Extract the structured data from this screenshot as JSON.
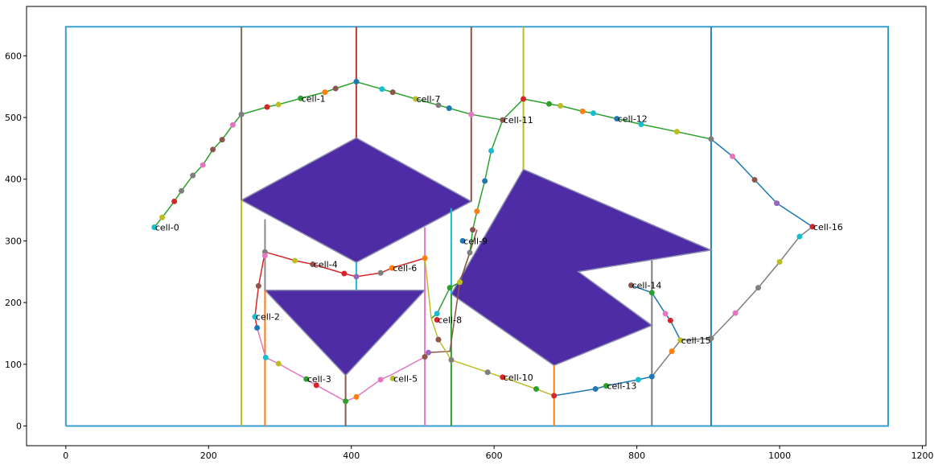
{
  "chart_data": {
    "type": "line",
    "title": "",
    "xlabel": "",
    "ylabel": "",
    "xlim": [
      -55,
      1205
    ],
    "ylim": [
      -32,
      680
    ],
    "xticks": [
      0,
      200,
      400,
      600,
      800,
      1000,
      1200
    ],
    "yticks": [
      0,
      100,
      200,
      300,
      400,
      500,
      600
    ],
    "grid": false,
    "boundary": {
      "rect": [
        [
          0,
          0
        ],
        [
          1152,
          0
        ],
        [
          1152,
          647
        ],
        [
          0,
          647
        ],
        [
          0,
          0
        ]
      ],
      "divider_x": 904,
      "color": "#3a9fcf",
      "divider_color": "#2a7fb0"
    },
    "obstacles": [
      {
        "color": "#4e2ca6",
        "points": [
          [
            246,
            366
          ],
          [
            407,
            467
          ],
          [
            568,
            364
          ],
          [
            407,
            265
          ]
        ]
      },
      {
        "color": "#4e2ca6",
        "points": [
          [
            279,
            220
          ],
          [
            503,
            220
          ],
          [
            392,
            82
          ]
        ]
      },
      {
        "color": "#4e2ca6",
        "points": [
          [
            540,
            214
          ],
          [
            641,
            416
          ],
          [
            904,
            285
          ],
          [
            718,
            250
          ],
          [
            821,
            163
          ],
          [
            684,
            98
          ]
        ]
      }
    ],
    "cell_walls": [
      {
        "color": "#7f6f52",
        "points": [
          [
            246,
            647
          ],
          [
            246,
            366
          ]
        ]
      },
      {
        "color": "#bdbd22",
        "points": [
          [
            246,
            366
          ],
          [
            246,
            0
          ]
        ]
      },
      {
        "color": "#8c8c8c",
        "points": [
          [
            279,
            220
          ],
          [
            279,
            335
          ]
        ]
      },
      {
        "color": "#ff7f0e",
        "points": [
          [
            279,
            220
          ],
          [
            279,
            0
          ]
        ]
      },
      {
        "color": "#c0392b",
        "points": [
          [
            407,
            647
          ],
          [
            407,
            467
          ]
        ]
      },
      {
        "color": "#17becf",
        "points": [
          [
            407,
            265
          ],
          [
            407,
            220
          ]
        ]
      },
      {
        "color": "#8c564b",
        "points": [
          [
            392,
            82
          ],
          [
            392,
            0
          ]
        ]
      },
      {
        "color": "#e377c2",
        "points": [
          [
            503,
            322
          ],
          [
            503,
            0
          ]
        ]
      },
      {
        "color": "#17becf",
        "points": [
          [
            540,
            214
          ],
          [
            540,
            353
          ]
        ]
      },
      {
        "color": "#2ca02c",
        "points": [
          [
            540,
            214
          ],
          [
            540,
            0
          ]
        ]
      },
      {
        "color": "#8c564b",
        "points": [
          [
            568,
            647
          ],
          [
            568,
            364
          ]
        ]
      },
      {
        "color": "#bcbd22",
        "points": [
          [
            641,
            647
          ],
          [
            641,
            416
          ]
        ]
      },
      {
        "color": "#ff7f0e",
        "points": [
          [
            684,
            98
          ],
          [
            684,
            0
          ]
        ]
      },
      {
        "color": "#7f7f7f",
        "points": [
          [
            821,
            268
          ],
          [
            821,
            0
          ]
        ]
      }
    ],
    "paths": [
      {
        "color": "#2ca02c",
        "points": [
          [
            124,
            322
          ],
          [
            135,
            338
          ],
          [
            152,
            364
          ],
          [
            162,
            381
          ],
          [
            178,
            406
          ],
          [
            192,
            423
          ],
          [
            206,
            448
          ],
          [
            219,
            464
          ],
          [
            234,
            488
          ],
          [
            246,
            505
          ],
          [
            282,
            517
          ],
          [
            298,
            521
          ],
          [
            329,
            531
          ],
          [
            363,
            541
          ],
          [
            378,
            547
          ],
          [
            407,
            558
          ],
          [
            443,
            546
          ],
          [
            458,
            541
          ],
          [
            490,
            530
          ],
          [
            522,
            520
          ],
          [
            537,
            515
          ],
          [
            568,
            505
          ],
          [
            612,
            496
          ],
          [
            641,
            530
          ],
          [
            677,
            522
          ],
          [
            693,
            519
          ],
          [
            724,
            510
          ],
          [
            739,
            507
          ],
          [
            772,
            498
          ],
          [
            806,
            489
          ],
          [
            856,
            477
          ],
          [
            904,
            465
          ]
        ]
      },
      {
        "color": "#2ca02c",
        "points": [
          [
            612,
            496
          ],
          [
            596,
            446
          ],
          [
            587,
            397
          ],
          [
            576,
            348
          ],
          [
            570,
            318
          ],
          [
            566,
            281
          ],
          [
            552,
            233
          ],
          [
            538,
            224
          ],
          [
            520,
            182
          ],
          [
            512,
            174
          ]
        ]
      },
      {
        "color": "#8c564b",
        "points": [
          [
            576,
            318
          ],
          [
            566,
            281
          ],
          [
            552,
            233
          ],
          [
            538,
            121
          ],
          [
            508,
            119
          ],
          [
            503,
            112
          ]
        ]
      },
      {
        "color": "#d62728",
        "points": [
          [
            279,
            282
          ],
          [
            321,
            268
          ],
          [
            346,
            262
          ],
          [
            390,
            247
          ],
          [
            407,
            242
          ],
          [
            441,
            248
          ],
          [
            457,
            256
          ],
          [
            503,
            272
          ]
        ]
      },
      {
        "color": "#d62728",
        "points": [
          [
            279,
            282
          ],
          [
            270,
            227
          ],
          [
            265,
            177
          ],
          [
            268,
            159
          ]
        ]
      },
      {
        "color": "#e377c2",
        "points": [
          [
            268,
            159
          ],
          [
            280,
            111
          ],
          [
            298,
            101
          ],
          [
            337,
            76
          ],
          [
            351,
            66
          ],
          [
            392,
            40
          ],
          [
            407,
            47
          ],
          [
            441,
            75
          ],
          [
            458,
            84
          ],
          [
            503,
            112
          ]
        ]
      },
      {
        "color": "#bcbd22",
        "points": [
          [
            503,
            272
          ],
          [
            512,
            174
          ],
          [
            522,
            140
          ],
          [
            540,
            107
          ],
          [
            591,
            87
          ],
          [
            612,
            79
          ],
          [
            659,
            60
          ],
          [
            684,
            49
          ]
        ]
      },
      {
        "color": "#1f77b4",
        "points": [
          [
            684,
            49
          ],
          [
            742,
            60
          ],
          [
            757,
            65
          ],
          [
            802,
            75
          ],
          [
            821,
            80
          ]
        ]
      },
      {
        "color": "#7f7f7f",
        "points": [
          [
            821,
            80
          ],
          [
            849,
            121
          ],
          [
            861,
            139
          ],
          [
            904,
            142
          ],
          [
            938,
            183
          ],
          [
            970,
            224
          ],
          [
            1000,
            266
          ],
          [
            1028,
            307
          ],
          [
            1046,
            323
          ]
        ]
      },
      {
        "color": "#1f77b4",
        "points": [
          [
            1046,
            323
          ],
          [
            996,
            361
          ],
          [
            965,
            399
          ],
          [
            934,
            437
          ],
          [
            904,
            465
          ]
        ]
      },
      {
        "color": "#1f77b4",
        "points": [
          [
            792,
            228
          ],
          [
            821,
            216
          ],
          [
            840,
            182
          ],
          [
            847,
            171
          ],
          [
            861,
            139
          ]
        ]
      }
    ],
    "cells": [
      {
        "label": "cell-0",
        "x": 124,
        "y": 322,
        "color": "#17becf"
      },
      {
        "label": "cell-1",
        "x": 329,
        "y": 531,
        "color": "#2ca02c"
      },
      {
        "label": "cell-2",
        "x": 265,
        "y": 177,
        "color": "#17becf"
      },
      {
        "label": "cell-3",
        "x": 337,
        "y": 76,
        "color": "#2ca02c"
      },
      {
        "label": "cell-4",
        "x": 346,
        "y": 262,
        "color": "#8c564b"
      },
      {
        "label": "cell-5",
        "x": 458,
        "y": 77,
        "color": "#bcbd22"
      },
      {
        "label": "cell-6",
        "x": 457,
        "y": 256,
        "color": "#ff7f0e"
      },
      {
        "label": "cell-7",
        "x": 490,
        "y": 530,
        "color": "#bcbd22"
      },
      {
        "label": "cell-8",
        "x": 520,
        "y": 172,
        "color": "#d62728"
      },
      {
        "label": "cell-9",
        "x": 556,
        "y": 300,
        "color": "#1f77b4"
      },
      {
        "label": "cell-10",
        "x": 612,
        "y": 79,
        "color": "#d62728"
      },
      {
        "label": "cell-11",
        "x": 612,
        "y": 496,
        "color": "#8c564b"
      },
      {
        "label": "cell-12",
        "x": 772,
        "y": 498,
        "color": "#1f77b4"
      },
      {
        "label": "cell-13",
        "x": 757,
        "y": 65,
        "color": "#2ca02c"
      },
      {
        "label": "cell-14",
        "x": 792,
        "y": 228,
        "color": "#8c564b"
      },
      {
        "label": "cell-15",
        "x": 861,
        "y": 139,
        "color": "#bcbd22"
      },
      {
        "label": "cell-16",
        "x": 1046,
        "y": 323,
        "color": "#d62728"
      }
    ],
    "waypoints": [
      {
        "x": 135,
        "y": 338,
        "color": "#bcbd22"
      },
      {
        "x": 152,
        "y": 364,
        "color": "#d62728"
      },
      {
        "x": 162,
        "y": 381,
        "color": "#7f7f7f"
      },
      {
        "x": 178,
        "y": 406,
        "color": "#7f7f7f"
      },
      {
        "x": 192,
        "y": 423,
        "color": "#e377c2"
      },
      {
        "x": 206,
        "y": 448,
        "color": "#8c564b"
      },
      {
        "x": 219,
        "y": 464,
        "color": "#8c564b"
      },
      {
        "x": 234,
        "y": 488,
        "color": "#e377c2"
      },
      {
        "x": 246,
        "y": 505,
        "color": "#7f7f7f"
      },
      {
        "x": 282,
        "y": 517,
        "color": "#d62728"
      },
      {
        "x": 298,
        "y": 521,
        "color": "#bcbd22"
      },
      {
        "x": 363,
        "y": 541,
        "color": "#ff7f0e"
      },
      {
        "x": 378,
        "y": 547,
        "color": "#8c564b"
      },
      {
        "x": 407,
        "y": 558,
        "color": "#1f77b4"
      },
      {
        "x": 443,
        "y": 546,
        "color": "#17becf"
      },
      {
        "x": 458,
        "y": 541,
        "color": "#8c564b"
      },
      {
        "x": 522,
        "y": 520,
        "color": "#7f7f7f"
      },
      {
        "x": 537,
        "y": 515,
        "color": "#1f77b4"
      },
      {
        "x": 568,
        "y": 505,
        "color": "#e377c2"
      },
      {
        "x": 641,
        "y": 530,
        "color": "#d62728"
      },
      {
        "x": 677,
        "y": 522,
        "color": "#2ca02c"
      },
      {
        "x": 693,
        "y": 519,
        "color": "#bcbd22"
      },
      {
        "x": 724,
        "y": 510,
        "color": "#ff7f0e"
      },
      {
        "x": 739,
        "y": 507,
        "color": "#17becf"
      },
      {
        "x": 806,
        "y": 489,
        "color": "#17becf"
      },
      {
        "x": 856,
        "y": 477,
        "color": "#bcbd22"
      },
      {
        "x": 904,
        "y": 465,
        "color": "#7f7f7f"
      },
      {
        "x": 934,
        "y": 437,
        "color": "#e377c2"
      },
      {
        "x": 965,
        "y": 399,
        "color": "#8c564b"
      },
      {
        "x": 996,
        "y": 361,
        "color": "#9467bd"
      },
      {
        "x": 1028,
        "y": 307,
        "color": "#17becf"
      },
      {
        "x": 1000,
        "y": 266,
        "color": "#bcbd22"
      },
      {
        "x": 970,
        "y": 224,
        "color": "#7f7f7f"
      },
      {
        "x": 938,
        "y": 183,
        "color": "#e377c2"
      },
      {
        "x": 904,
        "y": 142,
        "color": "#7f7f7f"
      },
      {
        "x": 849,
        "y": 121,
        "color": "#ff7f0e"
      },
      {
        "x": 847,
        "y": 171,
        "color": "#d62728"
      },
      {
        "x": 840,
        "y": 182,
        "color": "#e377c2"
      },
      {
        "x": 821,
        "y": 216,
        "color": "#2ca02c"
      },
      {
        "x": 821,
        "y": 80,
        "color": "#1f77b4"
      },
      {
        "x": 802,
        "y": 75,
        "color": "#17becf"
      },
      {
        "x": 742,
        "y": 60,
        "color": "#1f77b4"
      },
      {
        "x": 684,
        "y": 49,
        "color": "#d62728"
      },
      {
        "x": 659,
        "y": 60,
        "color": "#2ca02c"
      },
      {
        "x": 591,
        "y": 87,
        "color": "#7f7f7f"
      },
      {
        "x": 540,
        "y": 107,
        "color": "#7f7f7f"
      },
      {
        "x": 522,
        "y": 140,
        "color": "#8c564b"
      },
      {
        "x": 520,
        "y": 182,
        "color": "#17becf"
      },
      {
        "x": 538,
        "y": 224,
        "color": "#2ca02c"
      },
      {
        "x": 552,
        "y": 233,
        "color": "#bcbd22"
      },
      {
        "x": 566,
        "y": 281,
        "color": "#7f7f7f"
      },
      {
        "x": 570,
        "y": 318,
        "color": "#8c564b"
      },
      {
        "x": 576,
        "y": 348,
        "color": "#ff7f0e"
      },
      {
        "x": 587,
        "y": 397,
        "color": "#1f77b4"
      },
      {
        "x": 596,
        "y": 446,
        "color": "#17becf"
      },
      {
        "x": 503,
        "y": 272,
        "color": "#ff7f0e"
      },
      {
        "x": 441,
        "y": 248,
        "color": "#7f7f7f"
      },
      {
        "x": 407,
        "y": 242,
        "color": "#9467bd"
      },
      {
        "x": 390,
        "y": 247,
        "color": "#d62728"
      },
      {
        "x": 321,
        "y": 268,
        "color": "#bcbd22"
      },
      {
        "x": 279,
        "y": 282,
        "color": "#7f7f7f"
      },
      {
        "x": 279,
        "y": 276,
        "color": "#e377c2"
      },
      {
        "x": 270,
        "y": 227,
        "color": "#8c564b"
      },
      {
        "x": 268,
        "y": 159,
        "color": "#1f77b4"
      },
      {
        "x": 280,
        "y": 111,
        "color": "#17becf"
      },
      {
        "x": 298,
        "y": 101,
        "color": "#bcbd22"
      },
      {
        "x": 351,
        "y": 66,
        "color": "#d62728"
      },
      {
        "x": 392,
        "y": 40,
        "color": "#2ca02c"
      },
      {
        "x": 407,
        "y": 47,
        "color": "#ff7f0e"
      },
      {
        "x": 441,
        "y": 75,
        "color": "#e377c2"
      },
      {
        "x": 503,
        "y": 112,
        "color": "#8c564b"
      },
      {
        "x": 508,
        "y": 119,
        "color": "#9467bd"
      }
    ]
  }
}
